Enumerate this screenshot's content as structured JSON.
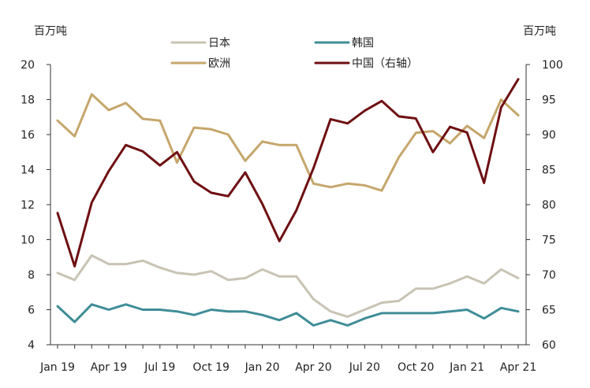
{
  "chart_data": {
    "type": "line",
    "left_axis_unit": "百万吨",
    "right_axis_unit": "百万吨",
    "x": [
      "Jan 19",
      "Feb 19",
      "Mar 19",
      "Apr 19",
      "May 19",
      "Jun 19",
      "Jul 19",
      "Aug 19",
      "Sep 19",
      "Oct 19",
      "Nov 19",
      "Dec 19",
      "Jan 20",
      "Feb 20",
      "Mar 20",
      "Apr 20",
      "May 20",
      "Jun 20",
      "Jul 20",
      "Aug 20",
      "Sep 20",
      "Oct 20",
      "Nov 20",
      "Dec 20",
      "Jan 21",
      "Feb 21",
      "Mar 21",
      "Apr 21"
    ],
    "x_tick_labels": [
      "Jan 19",
      "Apr 19",
      "Jul 19",
      "Oct 19",
      "Jan 20",
      "Apr 20",
      "Jul 20",
      "Oct 20",
      "Jan 21",
      "Apr 21"
    ],
    "x_tick_every": 3,
    "y_left_ticks": [
      "4",
      "6",
      "8",
      "10",
      "12",
      "14",
      "16",
      "18",
      "20"
    ],
    "y_right_ticks": [
      "60",
      "65",
      "70",
      "75",
      "80",
      "85",
      "90",
      "95",
      "100"
    ],
    "ylim_left": [
      4,
      20
    ],
    "ylim_right": [
      60,
      100
    ],
    "grid": false,
    "legend_position": "top",
    "series": [
      {
        "name": "日本",
        "axis": "left",
        "color": "#c8c3b3",
        "values": [
          8.1,
          7.7,
          9.1,
          8.6,
          8.6,
          8.8,
          8.4,
          8.1,
          8.0,
          8.2,
          7.7,
          7.8,
          8.3,
          7.9,
          7.9,
          6.6,
          5.9,
          5.6,
          6.0,
          6.4,
          6.5,
          7.2,
          7.2,
          7.5,
          7.9,
          7.5,
          8.3,
          7.8
        ]
      },
      {
        "name": "韩国",
        "axis": "left",
        "color": "#3f8d97",
        "values": [
          6.2,
          5.3,
          6.3,
          6.0,
          6.3,
          6.0,
          6.0,
          5.9,
          5.7,
          6.0,
          5.9,
          5.9,
          5.7,
          5.4,
          5.8,
          5.1,
          5.4,
          5.1,
          5.5,
          5.8,
          5.8,
          5.8,
          5.8,
          5.9,
          6.0,
          5.5,
          6.1,
          5.9
        ]
      },
      {
        "name": "欧洲",
        "axis": "left",
        "color": "#c5a66b",
        "values": [
          16.8,
          15.9,
          18.3,
          17.4,
          17.8,
          16.9,
          16.8,
          14.4,
          16.4,
          16.3,
          16.0,
          14.5,
          15.6,
          15.4,
          15.4,
          13.2,
          13.0,
          13.2,
          13.1,
          12.8,
          14.7,
          16.1,
          16.2,
          15.5,
          16.5,
          15.8,
          18.0,
          17.1
        ]
      },
      {
        "name": "中国（右轴）",
        "axis": "right",
        "color": "#6e0f12",
        "values": [
          78.8,
          71.2,
          80.3,
          84.8,
          88.5,
          87.6,
          85.6,
          87.5,
          83.3,
          81.7,
          81.2,
          84.6,
          80.1,
          74.8,
          79.2,
          85.2,
          92.2,
          91.6,
          93.4,
          94.8,
          92.6,
          92.3,
          87.5,
          91.1,
          90.3,
          83.1,
          93.9,
          97.9
        ]
      }
    ]
  }
}
